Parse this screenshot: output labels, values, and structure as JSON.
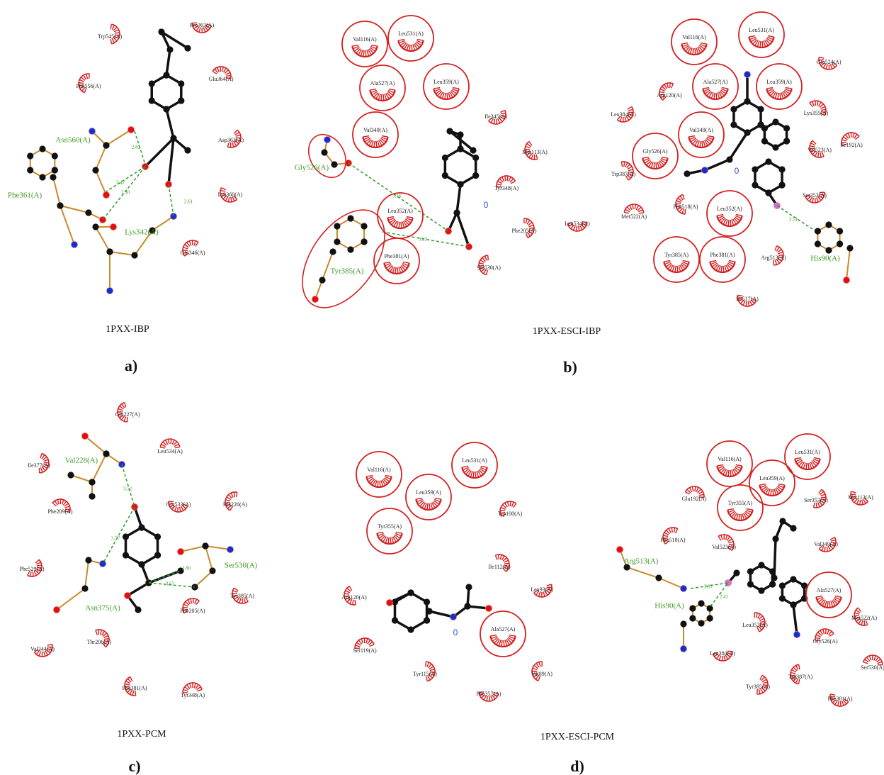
{
  "captions": [
    {
      "title": "1PXX-IBP",
      "letter": "a)"
    },
    {
      "title": "1PXX-ESCI-IBP",
      "letter": "b)"
    },
    {
      "title": "1PXX-PCM",
      "letter": "c)"
    },
    {
      "title": "1PXX-ESCI-PCM",
      "letter": "d)"
    }
  ],
  "diagrams": [
    {
      "hydrophobic": [
        "Trp545(A)",
        "Pro363(A)",
        "Phe556(A)",
        "Glu364(A)",
        "Asp362(A)",
        "Lys360(A)",
        "Glu346(A)"
      ],
      "circled": [],
      "hbond_residues": [
        "Asn560(A)",
        "Phe361(A)",
        "Lys342(A)"
      ],
      "distances": [
        "2.82",
        "3.42",
        "3.30",
        "2.61"
      ]
    },
    {
      "hydrophobic": [
        "Ile345(A)",
        "Met113(A)",
        "Tyr348(A)",
        "Phe205(A)",
        "Leu534(A)",
        "Ser530(A)"
      ],
      "circled": [
        "Val116(A)",
        "Leu531(A)",
        "Ala527(A)",
        "Leu359(A)",
        "Val349(A)",
        "Leu352(A)",
        "Phe381(A)"
      ],
      "hbond_residues": [
        "Gly526(A)",
        "Tyr385(A)"
      ],
      "distances": [
        "3.16",
        "3.23"
      ],
      "marker": "0"
    },
    {
      "hydrophobic": [
        "Glu524(A)",
        "Arg120(A)",
        "Lys355(A)",
        "Leu384(A)",
        "Val523(A)",
        "Ile192(A)",
        "Trp387(A)",
        "Ser353(A)",
        "Phe518(A)",
        "Met522(A)",
        "Arg513(A)",
        "Ile517(A)"
      ],
      "circled": [
        "Val116(A)",
        "Leu531(A)",
        "Ala527(A)",
        "Leu359(A)",
        "Val349(A)",
        "Gly526(A)",
        "Leu352(A)",
        "Tyr385(A)",
        "Phe381(A)"
      ],
      "hbond_residues": [
        "His90(A)"
      ],
      "distances": [
        "3.51"
      ],
      "marker": "0"
    },
    {
      "hydrophobic": [
        "Gly227(A)",
        "Leu534(A)",
        "Ile377(A)",
        "Gly533(A)",
        "His226(A)",
        "Phe209(A)",
        "Phe529(A)",
        "Tyr385(A)",
        "Phe205(A)",
        "Thr206(A)",
        "Val344(A)",
        "Phe381(A)",
        "Tyr348(A)"
      ],
      "circled": [],
      "hbond_residues": [
        "Val228(A)",
        "Ser530(A)",
        "Asn375(A)"
      ],
      "distances": [
        "3.52",
        "3.57",
        "2.80",
        "3.67"
      ]
    },
    {
      "hydrophobic": [
        "Trp100(A)",
        "Ile112(A)",
        "Leu93(A)",
        "Arg120(A)",
        "Ser119(A)",
        "Tyr115(A)",
        "Phe357(A)",
        "Val89(A)"
      ],
      "circled": [
        "Val116(A)",
        "Leu531(A)",
        "Leu359(A)",
        "Tyr355(A)",
        "Ala527(A)"
      ],
      "hbond_residues": [],
      "distances": [],
      "marker": "0"
    },
    {
      "hydrophobic": [
        "Glu192(A)",
        "Ser353(A)",
        "Met113(A)",
        "Phe518(A)",
        "Val523(A)",
        "Val349(A)",
        "Met522(A)",
        "Gly526(A)",
        "Leu352(A)",
        "Leu384(A)",
        "Trp387(A)",
        "Ser530(A)",
        "Tyr385(A)",
        "Phe381(A)"
      ],
      "circled": [
        "Val116(A)",
        "Leu531(A)",
        "Leu359(A)",
        "Tyr355(A)",
        "Ala527(A)"
      ],
      "hbond_residues": [
        "Arg513(A)",
        "His90(A)"
      ],
      "distances": [
        "3.87",
        "2.41"
      ]
    }
  ]
}
